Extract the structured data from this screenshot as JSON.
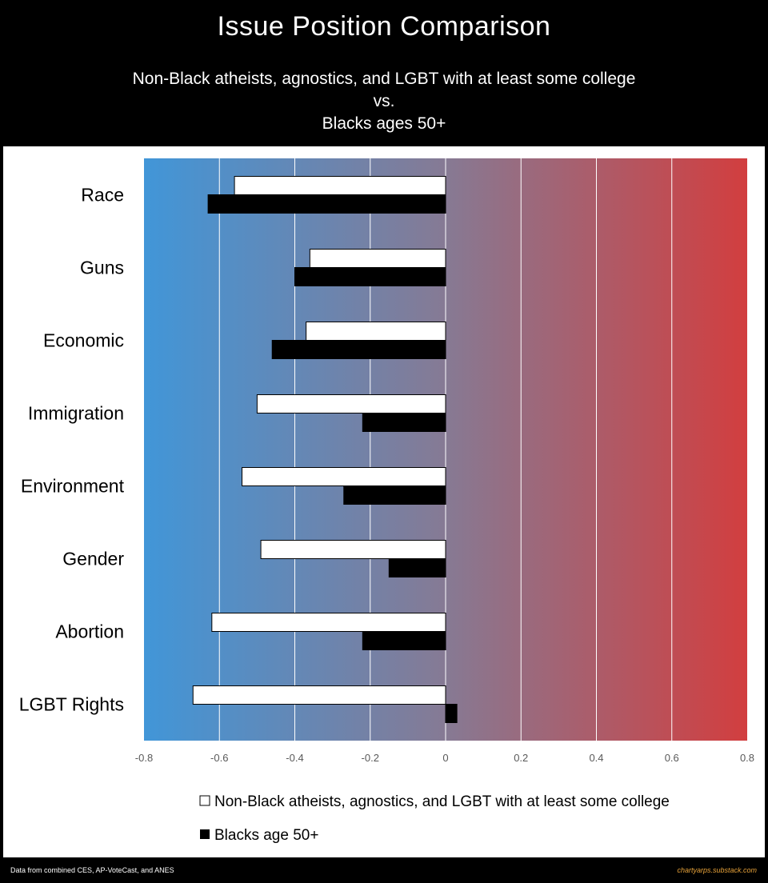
{
  "header": {
    "title": "Issue Position Comparison",
    "subtitle_line1": "Non-Black atheists, agnostics, and LGBT with at least some college",
    "subtitle_line2": "vs.",
    "subtitle_line3": "Blacks ages 50+"
  },
  "footer": {
    "source": "Data from combined CES, AP-VoteCast, and ANES",
    "credit": "chartyarps.substack.com"
  },
  "colors": {
    "background_left": "#4196d8",
    "background_mid": "#867a94",
    "background_right": "#d23e3f",
    "series_white": "#ffffff",
    "series_black": "#000000"
  },
  "chart_data": {
    "type": "bar",
    "orientation": "horizontal",
    "title": "Issue Position Comparison",
    "categories": [
      "Race",
      "Guns",
      "Economic",
      "Immigration",
      "Environment",
      "Gender",
      "Abortion",
      "LGBT Rights"
    ],
    "series": [
      {
        "name": "Non-Black atheists, agnostics, and LGBT with at least some college",
        "color": "#ffffff",
        "values": [
          -0.56,
          -0.36,
          -0.37,
          -0.5,
          -0.54,
          -0.49,
          -0.62,
          -0.67
        ]
      },
      {
        "name": "Blacks age 50+",
        "color": "#000000",
        "values": [
          -0.63,
          -0.4,
          -0.46,
          -0.22,
          -0.27,
          -0.15,
          -0.22,
          0.03
        ]
      }
    ],
    "xlim": [
      -0.8,
      0.8
    ],
    "xticks": [
      -0.8,
      -0.6,
      -0.4,
      -0.2,
      0,
      0.2,
      0.4,
      0.6,
      0.8
    ],
    "xtick_labels": [
      "-0.8",
      "-0.6",
      "-0.4",
      "-0.2",
      "0",
      "0.2",
      "0.4",
      "0.6",
      "0.8"
    ],
    "grid": true,
    "legend_position": "bottom"
  }
}
